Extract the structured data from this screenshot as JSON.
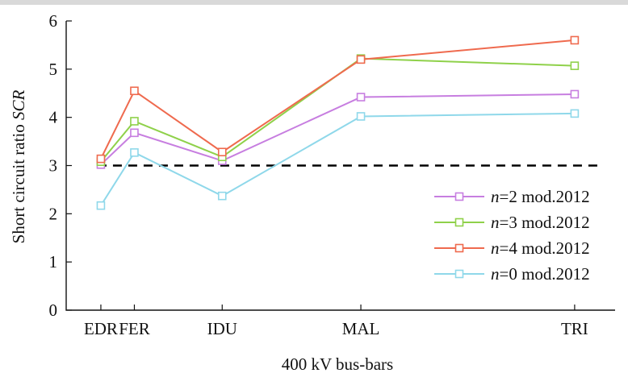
{
  "chart_data": {
    "type": "line",
    "xlabel": "400 kV bus-bars",
    "ylabel_prefix": "Short circuit ratio ",
    "ylabel_symbol": "SCR",
    "ylim": [
      0,
      6
    ],
    "yticks": [
      0,
      1,
      2,
      3,
      4,
      5,
      6
    ],
    "categories": [
      "EDR",
      "FER",
      "IDU",
      "MAL",
      "TRI"
    ],
    "x": [
      0,
      0.58,
      2.1,
      4.5,
      8.2
    ],
    "xlim": [
      -0.6,
      8.9
    ],
    "grid": false,
    "legend_position": "bottom-right",
    "threshold": {
      "value": 3,
      "style": "dashed",
      "color": "#000000"
    },
    "series": [
      {
        "name": "n=2 mod.2012",
        "var": "n",
        "suffix": "=2 mod.2012",
        "color": "#c77ee0",
        "values": [
          3.02,
          3.68,
          3.1,
          4.42,
          4.48
        ]
      },
      {
        "name": "n=3 mod.2012",
        "var": "n",
        "suffix": "=3 mod.2012",
        "color": "#8fd14a",
        "values": [
          3.08,
          3.92,
          3.18,
          5.22,
          5.07
        ]
      },
      {
        "name": "n=4 mod.2012",
        "var": "n",
        "suffix": "=4 mod.2012",
        "color": "#ef6a4e",
        "values": [
          3.14,
          4.55,
          3.28,
          5.2,
          5.6
        ]
      },
      {
        "name": "n=0 mod.2012",
        "var": "n",
        "suffix": "=0 mod.2012",
        "color": "#8fd8ea",
        "values": [
          2.17,
          3.27,
          2.37,
          4.02,
          4.08
        ]
      }
    ]
  }
}
